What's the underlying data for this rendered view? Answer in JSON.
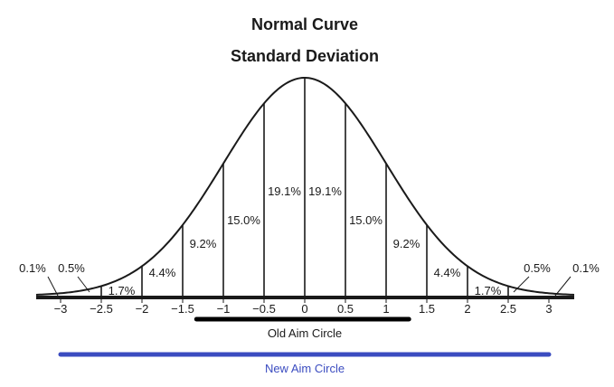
{
  "chart_data": {
    "type": "area",
    "title": "Normal Curve",
    "subtitle": "Standard Deviation",
    "xlim": [
      -3,
      3
    ],
    "x_ticks": [
      -3,
      -2.5,
      -2,
      -1.5,
      -1,
      -0.5,
      0,
      0.5,
      1,
      1.5,
      2,
      2.5,
      3
    ],
    "x_tick_labels": [
      "−3",
      "−2.5",
      "−2",
      "−1.5",
      "−1",
      "−0.5",
      "0",
      "0.5",
      "1",
      "1.5",
      "2",
      "2.5",
      "3"
    ],
    "band_boundaries": [
      -2.5,
      -2,
      -1.5,
      -1,
      -0.5,
      0,
      0.5,
      1,
      1.5,
      2,
      2.5
    ],
    "bands": [
      {
        "from": null,
        "to": -3,
        "label": "0.1%"
      },
      {
        "from": -3,
        "to": -2.5,
        "label": "0.5%"
      },
      {
        "from": -2.5,
        "to": -2,
        "label": "1.7%"
      },
      {
        "from": -2,
        "to": -1.5,
        "label": "4.4%"
      },
      {
        "from": -1.5,
        "to": -1,
        "label": "9.2%"
      },
      {
        "from": -1,
        "to": -0.5,
        "label": "15.0%"
      },
      {
        "from": -0.5,
        "to": 0,
        "label": "19.1%"
      },
      {
        "from": 0,
        "to": 0.5,
        "label": "19.1%"
      },
      {
        "from": 0.5,
        "to": 1,
        "label": "15.0%"
      },
      {
        "from": 1,
        "to": 1.5,
        "label": "9.2%"
      },
      {
        "from": 1.5,
        "to": 2,
        "label": "4.4%"
      },
      {
        "from": 2,
        "to": 2.5,
        "label": "1.7%"
      },
      {
        "from": 2.5,
        "to": 3,
        "label": "0.5%"
      },
      {
        "from": 3,
        "to": null,
        "label": "0.1%"
      }
    ],
    "ranges": [
      {
        "label": "Old Aim Circle",
        "from": -1.33,
        "to": 1.28,
        "color": "#000000"
      },
      {
        "label": "New Aim Circle",
        "from": -3,
        "to": 3,
        "color": "#3b4cc0"
      }
    ],
    "grid": false
  }
}
